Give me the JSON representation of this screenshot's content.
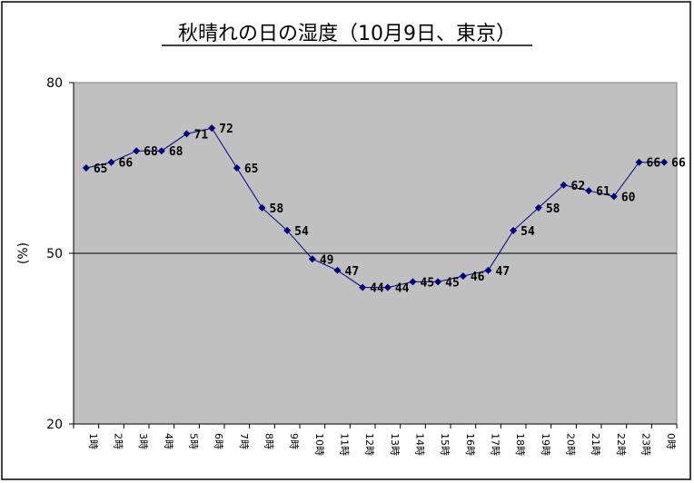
{
  "chart_data": {
    "type": "line",
    "title": "秋晴れの日の湿度（10月9日、東京）",
    "ylabel": "(%)",
    "xlabel": "",
    "ylim": [
      20,
      80
    ],
    "yticks": [
      20,
      50,
      80
    ],
    "grid": false,
    "reference_line": 50,
    "legend": "none",
    "categories": [
      "1時",
      "2時",
      "3時",
      "4時",
      "5時",
      "6時",
      "7時",
      "8時",
      "9時",
      "10時",
      "11時",
      "12時",
      "13時",
      "14時",
      "15時",
      "16時",
      "17時",
      "18時",
      "19時",
      "20時",
      "21時",
      "22時",
      "23時",
      "0時"
    ],
    "series": [
      {
        "values": [
          65,
          66,
          68,
          68,
          71,
          72,
          65,
          58,
          54,
          49,
          47,
          44,
          44,
          45,
          45,
          46,
          47,
          54,
          58,
          62,
          61,
          60,
          66,
          66
        ]
      }
    ],
    "colors": {
      "plot_bg": "#c0c0c0",
      "line": "#000080",
      "marker": "#000080"
    }
  }
}
